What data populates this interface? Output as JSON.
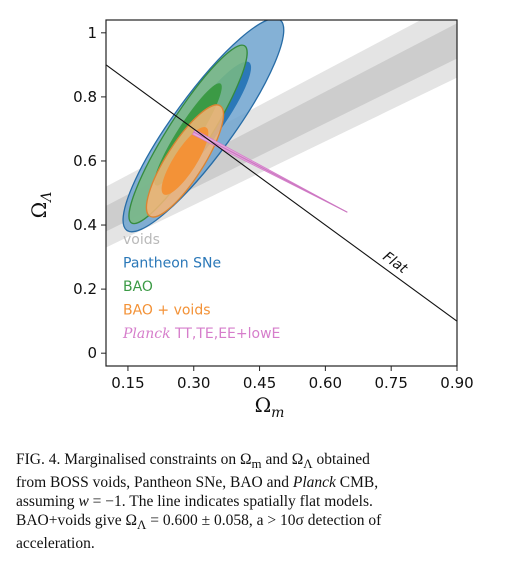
{
  "chart_data": {
    "type": "contour",
    "xlabel": "Ω_m",
    "ylabel": "Ω_Λ",
    "xlim": [
      0.1,
      0.9
    ],
    "ylim": [
      -0.04,
      1.04
    ],
    "x_ticks": [
      "0.15",
      "0.30",
      "0.45",
      "0.60",
      "0.75",
      "0.90"
    ],
    "x_tick_values": [
      0.15,
      0.3,
      0.45,
      0.6,
      0.75,
      0.9
    ],
    "y_ticks": [
      "0",
      "0.2",
      "0.4",
      "0.6",
      "0.8",
      "1"
    ],
    "y_tick_values": [
      0,
      0.2,
      0.4,
      0.6,
      0.8,
      1.0
    ],
    "grid": false,
    "legend_position": "lower-left inside plot",
    "series": [
      {
        "name": "voids",
        "color": "#b9b9b9",
        "shape": "band",
        "contours_68": {
          "lower_left": [
            0.1,
            0.38
          ],
          "upper_left": [
            0.1,
            0.46
          ],
          "upper_right": [
            0.9,
            1.03
          ],
          "lower_right": [
            0.9,
            0.92
          ]
        },
        "contours_95": {
          "lower_left": [
            0.1,
            0.33
          ],
          "upper_left": [
            0.1,
            0.52
          ],
          "upper_right": [
            0.9,
            1.1
          ],
          "lower_right": [
            0.9,
            0.86
          ]
        }
      },
      {
        "name": "Pantheon SNe",
        "color": "#2b78b8",
        "shape": "ellipse",
        "center": [
          0.322,
          0.712
        ],
        "contours": [
          {
            "level": "95%",
            "semi_major": 0.372,
            "semi_minor": 0.072
          },
          {
            "level": "68%",
            "semi_major": 0.222,
            "semi_minor": 0.04
          }
        ],
        "angle_deg": 62
      },
      {
        "name": "BAO",
        "color": "#3b9a45",
        "shape": "ellipse",
        "center": [
          0.287,
          0.683
        ],
        "contours": [
          {
            "level": "95%",
            "semi_major": 0.305,
            "semi_minor": 0.048
          },
          {
            "level": "68%",
            "semi_major": 0.175,
            "semi_minor": 0.026
          }
        ],
        "angle_deg": 65
      },
      {
        "name": "BAO + voids",
        "color": "#f39237",
        "shape": "ellipse",
        "center": [
          0.28,
          0.6
        ],
        "contours": [
          {
            "level": "95%",
            "semi_major": 0.19,
            "semi_minor": 0.044
          },
          {
            "level": "68%",
            "semi_major": 0.115,
            "semi_minor": 0.027
          }
        ],
        "angle_deg": 65
      },
      {
        "name": "Planck TT,TE,EE+lowE",
        "legend_italic_part": "Planck",
        "legend_rest": " TT,TE,EE+lowE",
        "color": "#d67ecb",
        "shape": "degeneracy line",
        "from": [
          0.3,
          0.69
        ],
        "to": [
          0.65,
          0.44
        ]
      }
    ],
    "reference_line": {
      "name": "Flat",
      "x": [
        0.1,
        0.9
      ],
      "y": [
        0.9,
        0.1
      ]
    }
  },
  "caption": {
    "lines": [
      {
        "parts": [
          {
            "t": "FIG. 4.  Marginalised constraints on Ω"
          },
          {
            "t": "m",
            "sub": true
          },
          {
            "t": " and Ω"
          },
          {
            "t": "Λ",
            "sub": true
          },
          {
            "t": " obtained"
          }
        ]
      },
      {
        "parts": [
          {
            "t": "from BOSS voids, Pantheon SNe, BAO and "
          },
          {
            "t": "Planck",
            "italic": true
          },
          {
            "t": " CMB,"
          }
        ]
      },
      {
        "parts": [
          {
            "t": "assuming "
          },
          {
            "t": "w",
            "italic": true
          },
          {
            "t": " = −1.  The line indicates spatially flat models."
          }
        ]
      },
      {
        "parts": [
          {
            "t": "BAO+voids give Ω"
          },
          {
            "t": "Λ",
            "sub": true
          },
          {
            "t": " = 0.600 ± 0.058, a > 10σ detection of"
          }
        ]
      },
      {
        "parts": [
          {
            "t": "acceleration."
          }
        ]
      }
    ]
  }
}
